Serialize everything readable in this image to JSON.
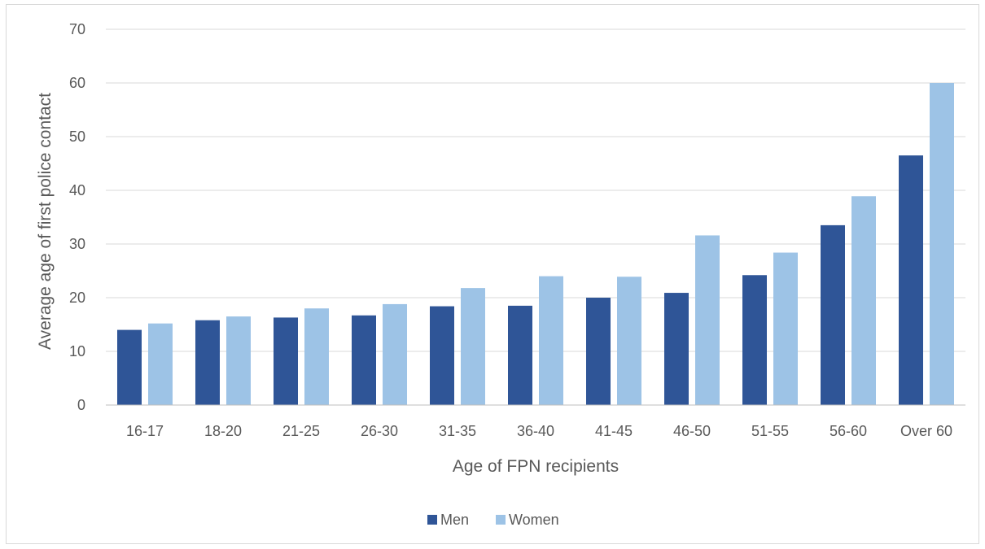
{
  "chart_data": {
    "type": "bar",
    "title": "",
    "xlabel": "Age of FPN recipients",
    "ylabel": "Average age of first police contact",
    "categories": [
      "16-17",
      "18-20",
      "21-25",
      "26-30",
      "31-35",
      "36-40",
      "41-45",
      "46-50",
      "51-55",
      "56-60",
      "Over 60"
    ],
    "series": [
      {
        "name": "Men",
        "color": "#2f5597",
        "values": [
          14.0,
          15.8,
          16.3,
          16.7,
          18.4,
          18.5,
          20.0,
          20.9,
          24.2,
          33.5,
          46.5
        ]
      },
      {
        "name": "Women",
        "color": "#9dc3e6",
        "values": [
          15.2,
          16.5,
          18.0,
          18.8,
          21.8,
          24.0,
          23.9,
          31.6,
          28.4,
          38.9,
          60.0
        ]
      }
    ],
    "ylim": [
      0,
      70
    ],
    "yticks": [
      0,
      10,
      20,
      30,
      40,
      50,
      60,
      70
    ],
    "grid": true,
    "legend_position": "bottom"
  }
}
